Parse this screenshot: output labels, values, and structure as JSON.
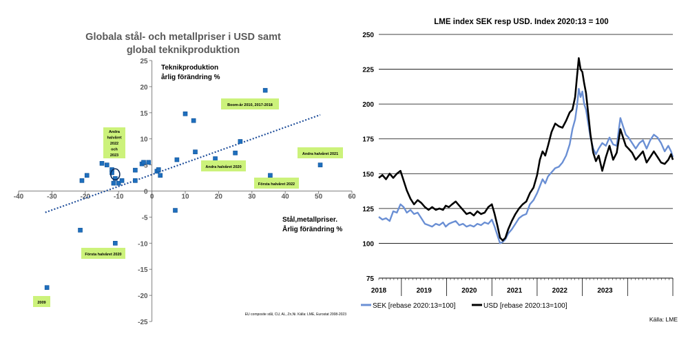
{
  "chart_data": [
    {
      "type": "scatter",
      "title_line1": "Globala stål- och metallpriser i USD samt",
      "title_line2": "global teknikproduktion",
      "ylabel_line1": "Teknikproduktion",
      "ylabel_line2": "årlig förändring %",
      "xlabel_line1": "Stål,metallpriser.",
      "xlabel_line2": "Årlig förändring %",
      "source": "EU composite stål, CU, AL, Zn,Ni. Källa: LME, Eurostat 2008-2023",
      "xlim": [
        -40,
        60
      ],
      "ylim": [
        -25,
        25
      ],
      "xticks": [
        "-40",
        "-30",
        "-20",
        "-10",
        "0",
        "10",
        "20",
        "30",
        "40",
        "50",
        "60"
      ],
      "yticks": [
        "25",
        "20",
        "15",
        "10",
        "5",
        "0",
        "-5",
        "-10",
        "-15",
        "-20",
        "-25"
      ],
      "points": [
        [
          -31.5,
          -18.5
        ],
        [
          -21.5,
          -7.5
        ],
        [
          -11,
          -10
        ],
        [
          -21,
          2
        ],
        [
          -19.5,
          3
        ],
        [
          -15,
          5.3
        ],
        [
          -13.5,
          5
        ],
        [
          -12,
          4.1
        ],
        [
          -12,
          3.5
        ],
        [
          -11.5,
          1.5
        ],
        [
          -11,
          2.4
        ],
        [
          -10,
          1.5
        ],
        [
          -9,
          2
        ],
        [
          -5,
          2
        ],
        [
          -5,
          4
        ],
        [
          -3,
          5.2
        ],
        [
          -2.5,
          5.5
        ],
        [
          -1,
          5.5
        ],
        [
          1.5,
          3.8
        ],
        [
          2,
          4.1
        ],
        [
          2.5,
          3
        ],
        [
          7,
          -3.7
        ],
        [
          7.5,
          6
        ],
        [
          10,
          14.8
        ],
        [
          12.5,
          13.5
        ],
        [
          13,
          7.5
        ],
        [
          19,
          6.2
        ],
        [
          25,
          7.3
        ],
        [
          26.5,
          9.5
        ],
        [
          34,
          19.3
        ],
        [
          35.5,
          3
        ],
        [
          50.5,
          5
        ]
      ],
      "trendline": {
        "x": [
          -32,
          50.5
        ],
        "y": [
          -4.1,
          14.6
        ]
      },
      "highlight": [
        -11,
        3.2
      ],
      "annotations": [
        {
          "lines": [
            "Boom-år 2010, 2017-2018"
          ]
        },
        {
          "lines": [
            "Andra",
            "halvåret",
            "2022",
            "och",
            "2023"
          ]
        },
        {
          "lines": [
            "Andra halvåret 2021"
          ]
        },
        {
          "lines": [
            "Andra halvåret 2020"
          ]
        },
        {
          "lines": [
            "Första halvåret 2022"
          ]
        },
        {
          "lines": [
            "Första halvåret 2020"
          ]
        },
        {
          "lines": [
            "2009"
          ]
        }
      ],
      "colors": {
        "point": "#1f6fbd",
        "trend": "#1f4e9a",
        "label_bg": "#ccf27b",
        "axis": "#808080"
      }
    },
    {
      "type": "line",
      "title": "LME index  SEK resp USD. Index 2020:13 = 100",
      "source": "Källa: LME",
      "ylim": [
        75,
        250
      ],
      "yticks": [
        "250",
        "225",
        "200",
        "175",
        "150",
        "125",
        "100",
        "75"
      ],
      "xlim": [
        2017.5,
        2024.0
      ],
      "xlabels": [
        "2018",
        "2019",
        "2020",
        "2021",
        "2022",
        "2023"
      ],
      "series": [
        {
          "name": "SEK [rebase 2020:13=100]",
          "color": "#6a8fd4",
          "points": [
            [
              2017.5,
              119
            ],
            [
              2017.58,
              117
            ],
            [
              2017.66,
              118
            ],
            [
              2017.74,
              116
            ],
            [
              2017.82,
              123
            ],
            [
              2017.9,
              122
            ],
            [
              2017.98,
              128
            ],
            [
              2018.05,
              126
            ],
            [
              2018.12,
              122
            ],
            [
              2018.2,
              124
            ],
            [
              2018.28,
              121
            ],
            [
              2018.36,
              122
            ],
            [
              2018.44,
              118
            ],
            [
              2018.52,
              114
            ],
            [
              2018.6,
              113
            ],
            [
              2018.68,
              112
            ],
            [
              2018.76,
              114
            ],
            [
              2018.84,
              113
            ],
            [
              2018.92,
              115
            ],
            [
              2018.98,
              112
            ],
            [
              2019.05,
              114
            ],
            [
              2019.12,
              115
            ],
            [
              2019.2,
              116
            ],
            [
              2019.28,
              113
            ],
            [
              2019.36,
              114
            ],
            [
              2019.44,
              112
            ],
            [
              2019.52,
              113
            ],
            [
              2019.6,
              112
            ],
            [
              2019.68,
              114
            ],
            [
              2019.76,
              113
            ],
            [
              2019.84,
              115
            ],
            [
              2019.92,
              114
            ],
            [
              2020.0,
              117
            ],
            [
              2020.06,
              112
            ],
            [
              2020.12,
              106
            ],
            [
              2020.18,
              100
            ],
            [
              2020.24,
              101
            ],
            [
              2020.3,
              103
            ],
            [
              2020.36,
              107
            ],
            [
              2020.44,
              110
            ],
            [
              2020.52,
              114
            ],
            [
              2020.6,
              118
            ],
            [
              2020.68,
              120
            ],
            [
              2020.76,
              121
            ],
            [
              2020.84,
              128
            ],
            [
              2020.92,
              131
            ],
            [
              2021.0,
              136
            ],
            [
              2021.06,
              141
            ],
            [
              2021.12,
              146
            ],
            [
              2021.18,
              143
            ],
            [
              2021.24,
              148
            ],
            [
              2021.32,
              151
            ],
            [
              2021.4,
              154
            ],
            [
              2021.48,
              155
            ],
            [
              2021.56,
              158
            ],
            [
              2021.64,
              163
            ],
            [
              2021.72,
              171
            ],
            [
              2021.78,
              182
            ],
            [
              2021.84,
              189
            ],
            [
              2021.88,
              198
            ],
            [
              2021.92,
              211
            ],
            [
              2021.96,
              205
            ],
            [
              2022.0,
              209
            ],
            [
              2022.04,
              200
            ],
            [
              2022.08,
              196
            ],
            [
              2022.12,
              188
            ],
            [
              2022.18,
              176
            ],
            [
              2022.24,
              168
            ],
            [
              2022.3,
              164
            ],
            [
              2022.36,
              168
            ],
            [
              2022.44,
              172
            ],
            [
              2022.52,
              170
            ],
            [
              2022.6,
              176
            ],
            [
              2022.68,
              171
            ],
            [
              2022.76,
              170
            ],
            [
              2022.84,
              190
            ],
            [
              2022.9,
              184
            ],
            [
              2022.96,
              178
            ],
            [
              2023.02,
              176
            ],
            [
              2023.1,
              172
            ],
            [
              2023.18,
              168
            ],
            [
              2023.26,
              172
            ],
            [
              2023.34,
              174
            ],
            [
              2023.42,
              168
            ],
            [
              2023.5,
              174
            ],
            [
              2023.58,
              178
            ],
            [
              2023.66,
              176
            ],
            [
              2023.74,
              172
            ],
            [
              2023.82,
              166
            ],
            [
              2023.9,
              170
            ],
            [
              2023.96,
              166
            ],
            [
              2024.0,
              162
            ]
          ]
        },
        {
          "name": "USD [rebase 2020:13=100]",
          "color": "#000000",
          "points": [
            [
              2017.5,
              147
            ],
            [
              2017.58,
              149
            ],
            [
              2017.66,
              146
            ],
            [
              2017.74,
              150
            ],
            [
              2017.82,
              147
            ],
            [
              2017.9,
              150
            ],
            [
              2017.98,
              152
            ],
            [
              2018.05,
              145
            ],
            [
              2018.12,
              138
            ],
            [
              2018.2,
              132
            ],
            [
              2018.28,
              128
            ],
            [
              2018.36,
              131
            ],
            [
              2018.44,
              129
            ],
            [
              2018.52,
              126
            ],
            [
              2018.6,
              124
            ],
            [
              2018.68,
              126
            ],
            [
              2018.76,
              124
            ],
            [
              2018.84,
              125
            ],
            [
              2018.92,
              124
            ],
            [
              2018.98,
              127
            ],
            [
              2019.05,
              126
            ],
            [
              2019.12,
              128
            ],
            [
              2019.2,
              130
            ],
            [
              2019.28,
              127
            ],
            [
              2019.36,
              124
            ],
            [
              2019.44,
              121
            ],
            [
              2019.52,
              122
            ],
            [
              2019.6,
              120
            ],
            [
              2019.68,
              123
            ],
            [
              2019.76,
              121
            ],
            [
              2019.84,
              122
            ],
            [
              2019.92,
              126
            ],
            [
              2020.0,
              128
            ],
            [
              2020.06,
              121
            ],
            [
              2020.12,
              113
            ],
            [
              2020.18,
              104
            ],
            [
              2020.24,
              102
            ],
            [
              2020.3,
              104
            ],
            [
              2020.36,
              110
            ],
            [
              2020.44,
              116
            ],
            [
              2020.52,
              121
            ],
            [
              2020.6,
              125
            ],
            [
              2020.68,
              128
            ],
            [
              2020.76,
              130
            ],
            [
              2020.84,
              136
            ],
            [
              2020.92,
              140
            ],
            [
              2021.0,
              149
            ],
            [
              2021.06,
              160
            ],
            [
              2021.12,
              166
            ],
            [
              2021.18,
              163
            ],
            [
              2021.24,
              170
            ],
            [
              2021.32,
              180
            ],
            [
              2021.4,
              186
            ],
            [
              2021.48,
              184
            ],
            [
              2021.56,
              183
            ],
            [
              2021.64,
              188
            ],
            [
              2021.72,
              194
            ],
            [
              2021.78,
              196
            ],
            [
              2021.84,
              205
            ],
            [
              2021.88,
              219
            ],
            [
              2021.92,
              233
            ],
            [
              2021.96,
              225
            ],
            [
              2022.0,
              223
            ],
            [
              2022.04,
              215
            ],
            [
              2022.08,
              208
            ],
            [
              2022.12,
              196
            ],
            [
              2022.18,
              178
            ],
            [
              2022.24,
              165
            ],
            [
              2022.3,
              159
            ],
            [
              2022.36,
              163
            ],
            [
              2022.44,
              152
            ],
            [
              2022.52,
              162
            ],
            [
              2022.6,
              170
            ],
            [
              2022.68,
              160
            ],
            [
              2022.76,
              165
            ],
            [
              2022.84,
              182
            ],
            [
              2022.9,
              176
            ],
            [
              2022.96,
              170
            ],
            [
              2023.02,
              168
            ],
            [
              2023.1,
              165
            ],
            [
              2023.18,
              160
            ],
            [
              2023.26,
              163
            ],
            [
              2023.34,
              166
            ],
            [
              2023.42,
              158
            ],
            [
              2023.5,
              162
            ],
            [
              2023.58,
              166
            ],
            [
              2023.66,
              162
            ],
            [
              2023.74,
              158
            ],
            [
              2023.82,
              157
            ],
            [
              2023.9,
              160
            ],
            [
              2023.96,
              164
            ],
            [
              2024.0,
              160
            ]
          ]
        }
      ],
      "grid": true,
      "legend_position": "bottom"
    }
  ]
}
